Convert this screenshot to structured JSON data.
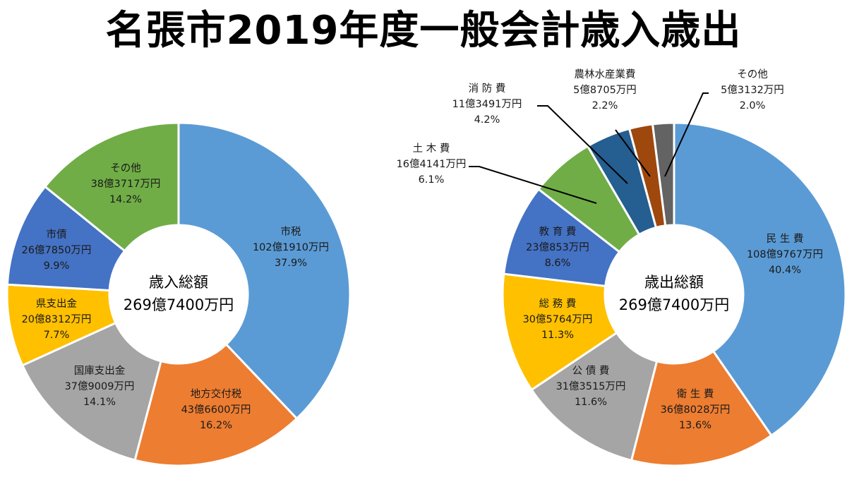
{
  "title": "名張市2019年度一般会計歳入歳出",
  "colors": {
    "blue": "#5b9bd5",
    "orange": "#ed7d31",
    "gray": "#a5a5a5",
    "yellow": "#ffc000",
    "darkblue": "#4472c4",
    "green": "#70ad47",
    "navy": "#255e91",
    "brown": "#9e480e",
    "darkgray": "#636363"
  },
  "chart_data": [
    {
      "type": "pie",
      "donut": true,
      "center_title": "歳入総額",
      "center_total": "269億7400万円",
      "slices": [
        {
          "name": "市税",
          "amount": "102億1910万円",
          "percent_label": "37.9%",
          "value": 37.9,
          "color": "#5b9bd5"
        },
        {
          "name": "地方交付税",
          "amount": "43億6600万円",
          "percent_label": "16.2%",
          "value": 16.2,
          "color": "#ed7d31"
        },
        {
          "name": "国庫支出金",
          "amount": "37億9009万円",
          "percent_label": "14.1%",
          "value": 14.1,
          "color": "#a5a5a5"
        },
        {
          "name": "県支出金",
          "amount": "20億8312万円",
          "percent_label": "7.7%",
          "value": 7.7,
          "color": "#ffc000"
        },
        {
          "name": "市債",
          "amount": "26億7850万円",
          "percent_label": "9.9%",
          "value": 9.9,
          "color": "#4472c4"
        },
        {
          "name": "その他",
          "amount": "38億3717万円",
          "percent_label": "14.2%",
          "value": 14.2,
          "color": "#70ad47"
        }
      ]
    },
    {
      "type": "pie",
      "donut": true,
      "center_title": "歳出総額",
      "center_total": "269億7400万円",
      "slices": [
        {
          "name": "民 生 費",
          "amount": "108億9767万円",
          "percent_label": "40.4%",
          "value": 40.4,
          "color": "#5b9bd5"
        },
        {
          "name": "衛 生 費",
          "amount": "36億8028万円",
          "percent_label": "13.6%",
          "value": 13.6,
          "color": "#ed7d31"
        },
        {
          "name": "公 債 費",
          "amount": "31億3515万円",
          "percent_label": "11.6%",
          "value": 11.6,
          "color": "#a5a5a5"
        },
        {
          "name": "総 務 費",
          "amount": "30億5764万円",
          "percent_label": "11.3%",
          "value": 11.3,
          "color": "#ffc000"
        },
        {
          "name": "教 育 費",
          "amount": "23億853万円",
          "percent_label": "8.6%",
          "value": 8.6,
          "color": "#4472c4"
        },
        {
          "name": "土 木 費",
          "amount": "16億4141万円",
          "percent_label": "6.1%",
          "value": 6.1,
          "color": "#70ad47"
        },
        {
          "name": "消 防 費",
          "amount": "11億3491万円",
          "percent_label": "4.2%",
          "value": 4.2,
          "color": "#255e91"
        },
        {
          "name": "農林水産業費",
          "amount": "5億8705万円",
          "percent_label": "2.2%",
          "value": 2.2,
          "color": "#9e480e"
        },
        {
          "name": "その他",
          "amount": "5億3132万円",
          "percent_label": "2.0%",
          "value": 2.0,
          "color": "#636363"
        }
      ]
    }
  ]
}
